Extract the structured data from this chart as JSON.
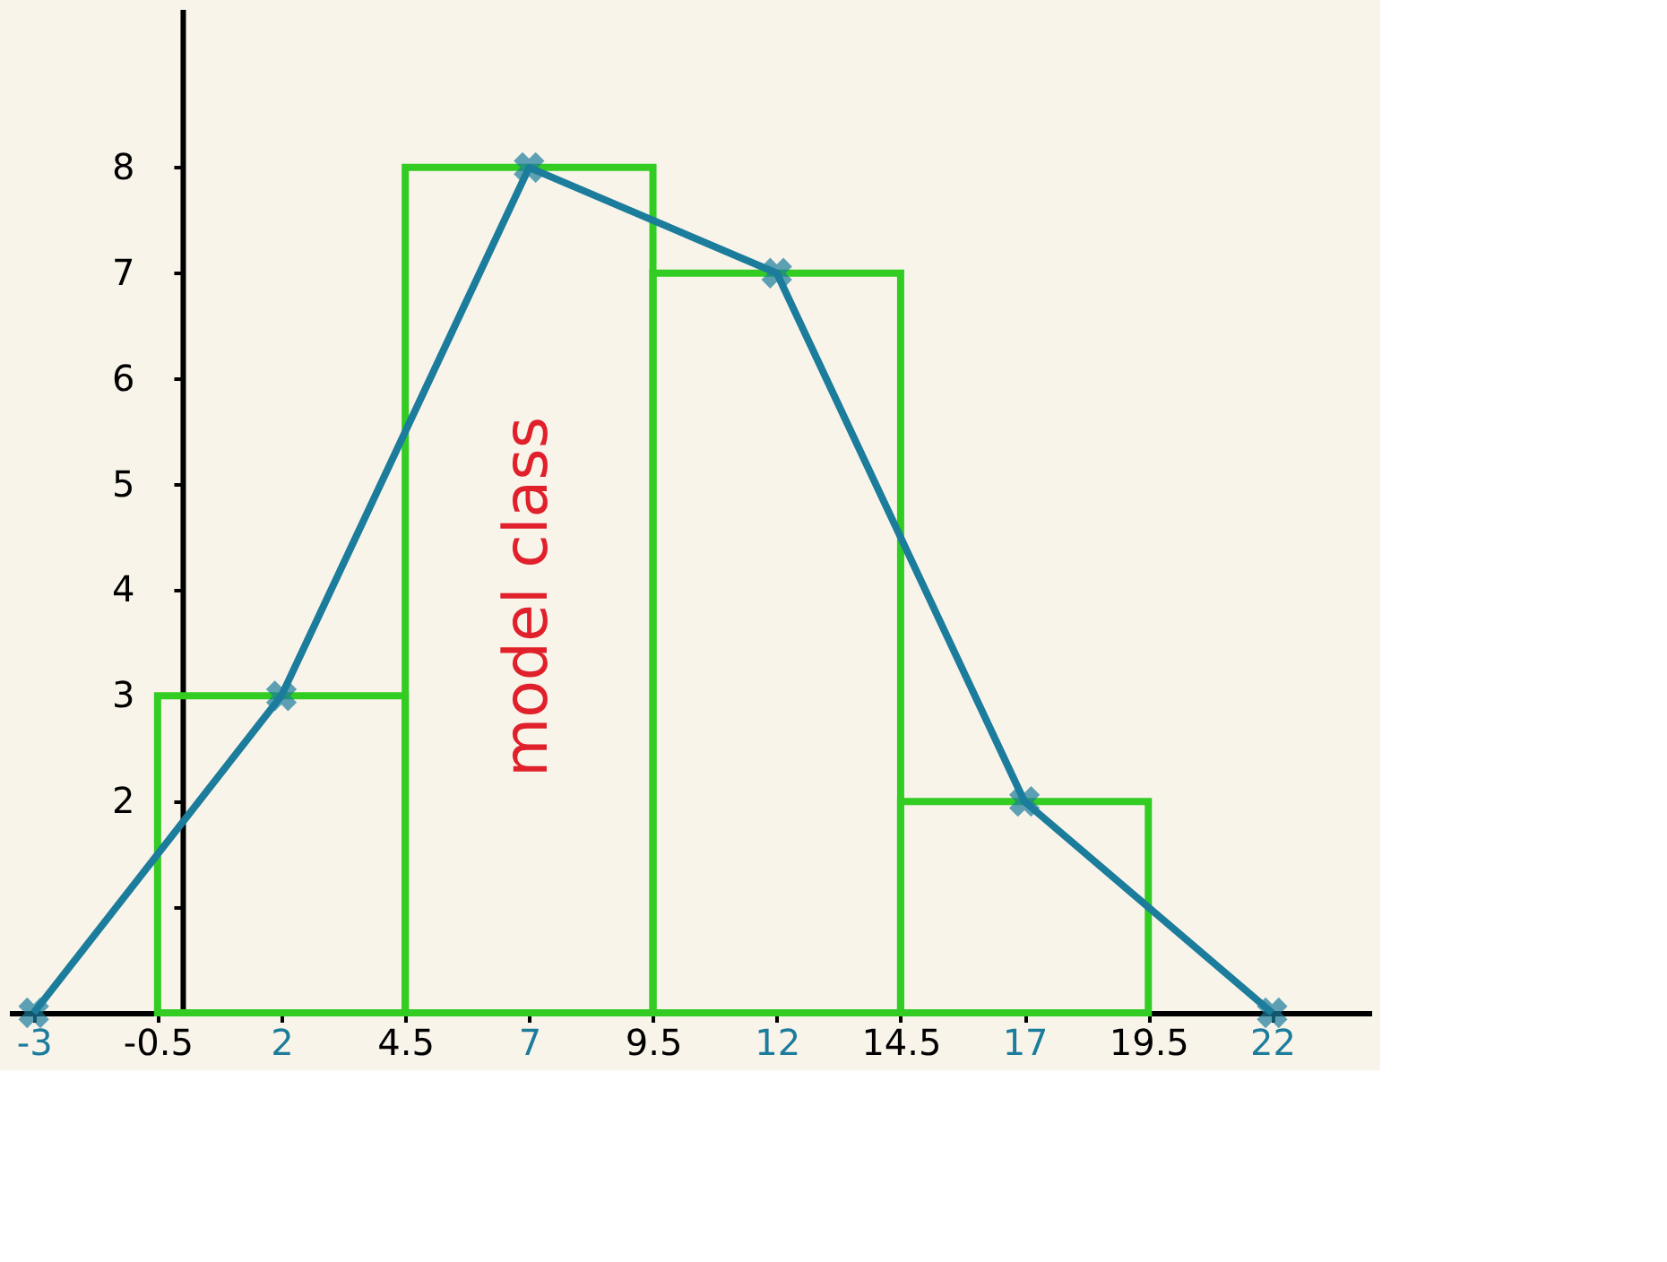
{
  "chart_data": {
    "type": "histogram",
    "bins": [
      -0.5,
      4.5,
      9.5,
      14.5,
      19.5
    ],
    "values": [
      3,
      8,
      7,
      2
    ],
    "color": "#33cc22",
    "series": [
      {
        "type": "line",
        "x": [
          -3,
          2,
          7,
          12,
          17,
          22
        ],
        "values": [
          0,
          3,
          8,
          7,
          2,
          0
        ],
        "color": "#1b7c9c",
        "marker": "cross"
      }
    ],
    "xlim": [
      -3.5,
      24
    ],
    "xticks": [
      -3,
      -0.5,
      2,
      4.5,
      7,
      9.5,
      12,
      14.5,
      17,
      19.5,
      22
    ],
    "ylim": [
      0,
      9.5
    ],
    "yticks": [
      {
        "value": 1,
        "label": null
      },
      2,
      3,
      4,
      5,
      6,
      7,
      8
    ],
    "annotations": [
      "model class"
    ],
    "grid": false
  }
}
